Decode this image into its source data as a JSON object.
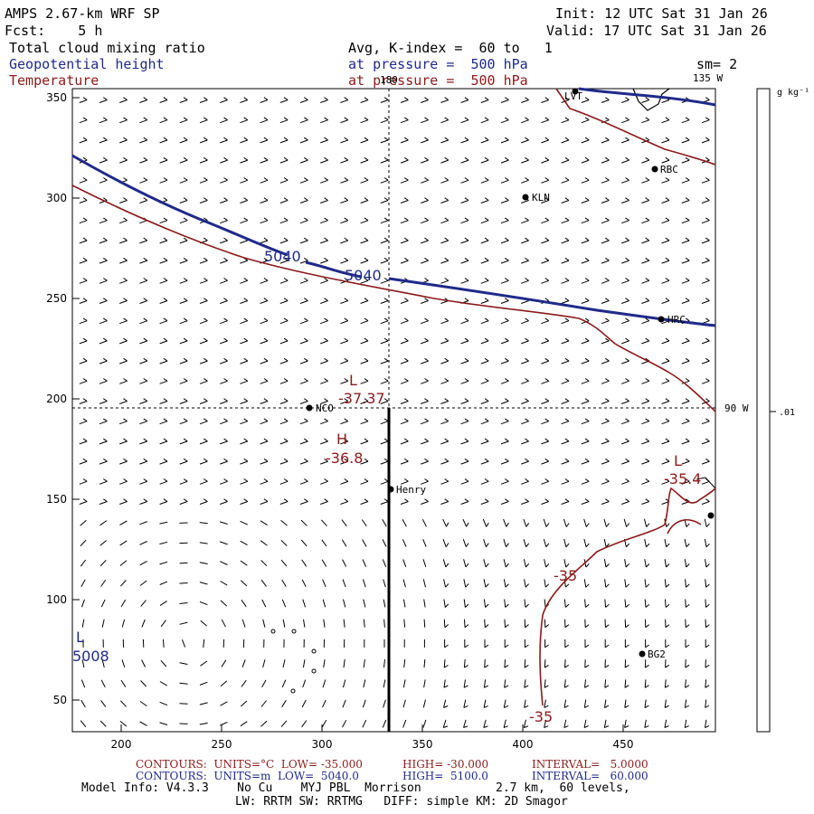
{
  "header": {
    "model": "AMPS 2.67-km WRF SP",
    "fcst": "Fcst:    5 h",
    "init": "Init: 12 UTC Sat 31 Jan 26",
    "valid": "Valid: 17 UTC Sat 31 Jan 26",
    "field1": "Total cloud mixing ratio",
    "field2": "Geopotential height",
    "field3": "Temperature",
    "avg": "Avg, K-index =  60 to   1",
    "press1": "at pressure =  500 hPa",
    "press2": "at pressure =  500 hPa",
    "sm": "sm= 2"
  },
  "map": {
    "x_ticks": [
      "200",
      "250",
      "300",
      "350",
      "400",
      "450"
    ],
    "y_ticks": [
      "50",
      "100",
      "150",
      "200",
      "250",
      "300",
      "350"
    ],
    "lon_labels": {
      "top": "180",
      "top_right": "135 W",
      "right": "90 W"
    },
    "stations": [
      {
        "name": "LVT"
      },
      {
        "name": "RBC"
      },
      {
        "name": "KLN"
      },
      {
        "name": "HRC"
      },
      {
        "name": "NCO"
      },
      {
        "name": "Henry"
      },
      {
        "name": "BG2"
      },
      {
        "name": ""
      }
    ],
    "contour_labels": {
      "h5040_a": "5040",
      "h5040_b": "5040",
      "low_center": "L",
      "low_value": "-37.37",
      "high_center": "H",
      "high_value": "-36.8",
      "low2_center": "L",
      "low2_value": "-35.4",
      "t35_a": "-35",
      "t35_b": "-35",
      "low3_center": "L",
      "low3_value": "5008"
    },
    "colorbar": {
      "unit": "g kg⁻¹",
      "tick": ".01"
    },
    "colors": {
      "height": "#1f2a8a",
      "temperature": "#8b1a1a",
      "barbs": "#000000"
    }
  },
  "footer": {
    "line1a": "CONTOURS:  UNITS=°C  LOW= -35.000",
    "line1b": "HIGH= -30.000",
    "line1c": "INTERVAL=   5.0000",
    "line2a": "CONTOURS:  UNITS=m  LOW=  5040.0",
    "line2b": "HIGH=  5100.0",
    "line2c": "INTERVAL=   60.000",
    "line3a": "Model Info: V4.3.3    No Cu    MYJ PBL  Morrison",
    "line3b": "2.7 km,  60 levels,",
    "line4": "LW: RRTM SW: RRTMG   DIFF: simple KM: 2D Smagor"
  }
}
